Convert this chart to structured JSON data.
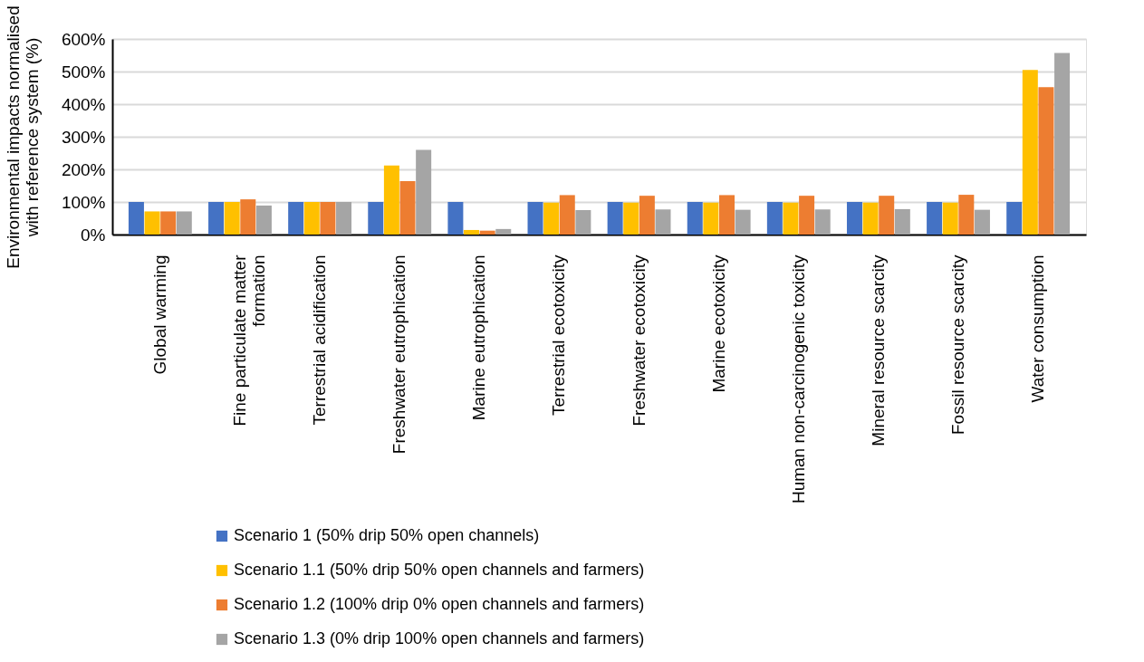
{
  "chart_data": {
    "type": "bar",
    "ylabel": "Environmental impacts normalised with reference system (%)",
    "categories": [
      "Global warming",
      "Fine particulate matter formation",
      "Terrestrial acidification",
      "Freshwater eutrophication",
      "Marine eutrophication",
      "Terrestrial ecotoxicity",
      "Freshwater ecotoxicity",
      "Marine ecotoxicity",
      "Human non-carcinogenic toxicity",
      "Mineral resource scarcity",
      "Fossil resource scarcity",
      "Water consumption"
    ],
    "series": [
      {
        "name": "Scenario 1 (50% drip 50% open channels)",
        "color": "#4472c4",
        "values": [
          100,
          100,
          100,
          100,
          100,
          100,
          100,
          100,
          100,
          100,
          100,
          100
        ]
      },
      {
        "name": "Scenario 1.1 (50% drip 50% open channels and farmers)",
        "color": "#ffc000",
        "values": [
          71,
          100,
          100,
          212,
          14,
          98,
          98,
          98,
          98,
          98,
          98,
          505
        ]
      },
      {
        "name": "Scenario 1.2 (100% drip 0% open channels and farmers)",
        "color": "#ed7d31",
        "values": [
          71,
          108,
          100,
          164,
          12,
          121,
          119,
          121,
          119,
          119,
          122,
          452
        ]
      },
      {
        "name": "Scenario 1.3 (0% drip 100% open channels and farmers)",
        "color": "#a5a5a5",
        "values": [
          71,
          89,
          100,
          260,
          17,
          75,
          77,
          76,
          77,
          78,
          76,
          557
        ]
      }
    ],
    "ylim": [
      0,
      600
    ],
    "yticks": [
      {
        "value": 0,
        "label": "0%"
      },
      {
        "value": 100,
        "label": "100%"
      },
      {
        "value": 200,
        "label": "200%"
      },
      {
        "value": 300,
        "label": "300%"
      },
      {
        "value": 400,
        "label": "400%"
      },
      {
        "value": 500,
        "label": "500%"
      },
      {
        "value": 600,
        "label": "600%"
      }
    ],
    "grid": "y",
    "legend": "bottom"
  }
}
